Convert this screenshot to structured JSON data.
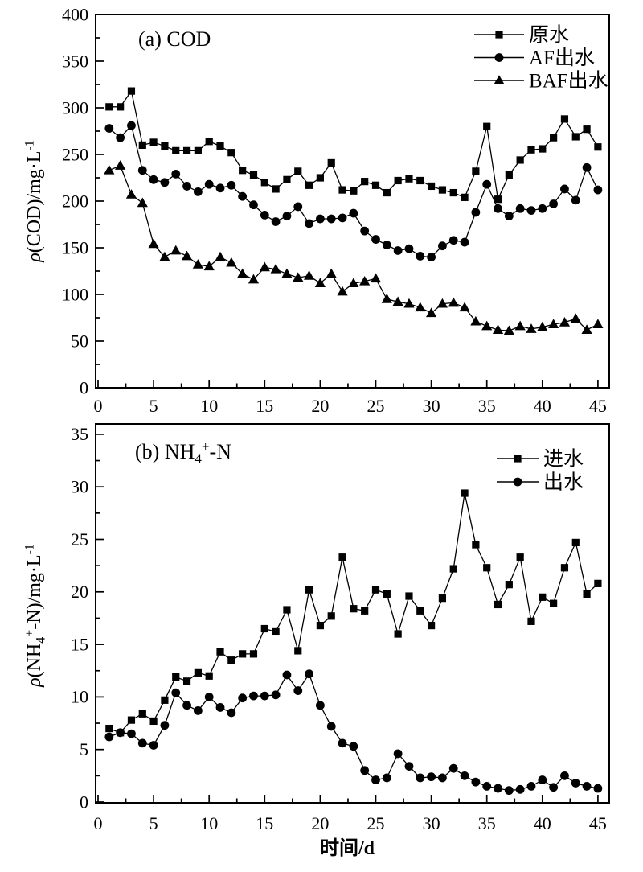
{
  "figure": {
    "background": "#ffffff",
    "ink_color": "#000000",
    "x_axis_title": "时间/d"
  },
  "chart_data": [
    {
      "panel": "a",
      "type": "line",
      "title_text": "(a) COD",
      "title_parts": [
        {
          "t": "(a)  COD"
        }
      ],
      "ylabel_text": "ρ(COD)/mg·L⁻¹",
      "ylabel_parts": [
        {
          "t": "ρ",
          "i": 1
        },
        {
          "t": "(COD)/mg·L"
        },
        {
          "t": "-1",
          "sup": 1
        }
      ],
      "xlabel": "",
      "xlim": [
        0,
        45
      ],
      "ylim": [
        0,
        400
      ],
      "xticks": [
        0,
        5,
        10,
        15,
        20,
        25,
        30,
        35,
        40,
        45
      ],
      "yticks": [
        0,
        50,
        100,
        150,
        200,
        250,
        300,
        350,
        400
      ],
      "x_minor_step": 2.5,
      "y_minor_step": 25,
      "legend_position": "top-right",
      "grid": false,
      "x": [
        1,
        2,
        3,
        4,
        5,
        6,
        7,
        8,
        9,
        10,
        11,
        12,
        13,
        14,
        15,
        16,
        17,
        18,
        19,
        20,
        21,
        22,
        23,
        24,
        25,
        26,
        27,
        28,
        29,
        30,
        31,
        32,
        33,
        34,
        35,
        36,
        37,
        38,
        39,
        40,
        41,
        42,
        43,
        44,
        45
      ],
      "series": [
        {
          "id": "raw-water",
          "label": "原水",
          "marker": "square",
          "color": "#000000",
          "values": [
            301,
            301,
            318,
            260,
            263,
            259,
            254,
            254,
            254,
            264,
            259,
            252,
            233,
            228,
            220,
            213,
            223,
            232,
            217,
            225,
            241,
            212,
            211,
            221,
            217,
            209,
            222,
            224,
            222,
            216,
            212,
            209,
            204,
            232,
            280,
            202,
            228,
            244,
            255,
            256,
            268,
            288,
            269,
            277,
            258
          ]
        },
        {
          "id": "af-effluent",
          "label": "AF出水",
          "marker": "circle",
          "color": "#000000",
          "values": [
            278,
            268,
            281,
            233,
            223,
            220,
            229,
            216,
            210,
            218,
            214,
            217,
            205,
            196,
            185,
            178,
            184,
            194,
            176,
            181,
            181,
            182,
            187,
            168,
            159,
            153,
            147,
            149,
            141,
            140,
            152,
            158,
            156,
            188,
            218,
            192,
            184,
            192,
            190,
            192,
            197,
            213,
            201,
            236,
            212
          ]
        },
        {
          "id": "baf-effluent",
          "label": "BAF出水",
          "marker": "triangle",
          "color": "#000000",
          "values": [
            233,
            238,
            207,
            198,
            154,
            140,
            147,
            141,
            132,
            130,
            140,
            134,
            122,
            116,
            129,
            127,
            122,
            118,
            120,
            112,
            122,
            103,
            112,
            114,
            117,
            95,
            92,
            90,
            86,
            80,
            90,
            91,
            86,
            71,
            66,
            62,
            61,
            66,
            63,
            65,
            68,
            70,
            74,
            62,
            68
          ]
        }
      ]
    },
    {
      "panel": "b",
      "type": "line",
      "title_text": "(b) NH4+-N",
      "title_parts": [
        {
          "t": "(b) NH"
        },
        {
          "t": "4",
          "sub": 1
        },
        {
          "t": "+",
          "sup": 1
        },
        {
          "t": "-N"
        }
      ],
      "ylabel_text": "ρ(NH4+-N)/mg·L⁻¹",
      "ylabel_parts": [
        {
          "t": "ρ",
          "i": 1
        },
        {
          "t": "(NH"
        },
        {
          "t": "4",
          "sub": 1
        },
        {
          "t": "+",
          "sup": 1
        },
        {
          "t": "-N)/mg·L"
        },
        {
          "t": "-1",
          "sup": 1
        }
      ],
      "xlabel": "时间/d",
      "xlim": [
        0,
        45
      ],
      "ylim": [
        0,
        36
      ],
      "xticks": [
        0,
        5,
        10,
        15,
        20,
        25,
        30,
        35,
        40,
        45
      ],
      "yticks": [
        0,
        5,
        10,
        15,
        20,
        25,
        30,
        35
      ],
      "x_minor_step": 2.5,
      "y_minor_step": 2.5,
      "legend_position": "top-right",
      "grid": false,
      "x": [
        1,
        2,
        3,
        4,
        5,
        6,
        7,
        8,
        9,
        10,
        11,
        12,
        13,
        14,
        15,
        16,
        17,
        18,
        19,
        20,
        21,
        22,
        23,
        24,
        25,
        26,
        27,
        28,
        29,
        30,
        31,
        32,
        33,
        34,
        35,
        36,
        37,
        38,
        39,
        40,
        41,
        42,
        43,
        44,
        45
      ],
      "series": [
        {
          "id": "influent",
          "label": "进水",
          "marker": "square",
          "color": "#000000",
          "values": [
            7.0,
            6.6,
            7.8,
            8.4,
            7.7,
            9.7,
            11.9,
            11.5,
            12.3,
            12.0,
            14.3,
            13.5,
            14.1,
            14.1,
            16.5,
            16.2,
            18.3,
            14.4,
            20.2,
            16.8,
            17.7,
            23.3,
            18.4,
            18.2,
            20.2,
            19.8,
            16.0,
            19.6,
            18.2,
            16.8,
            19.4,
            22.2,
            29.4,
            24.5,
            22.3,
            18.8,
            20.7,
            23.3,
            17.2,
            19.5,
            18.9,
            22.3,
            24.7,
            19.8,
            20.8
          ]
        },
        {
          "id": "effluent",
          "label": "出水",
          "marker": "circle",
          "color": "#000000",
          "values": [
            6.2,
            6.6,
            6.5,
            5.6,
            5.4,
            7.3,
            10.4,
            9.2,
            8.7,
            10.0,
            9.0,
            8.5,
            9.9,
            10.1,
            10.1,
            10.2,
            12.1,
            10.6,
            12.2,
            9.2,
            7.2,
            5.6,
            5.3,
            3.0,
            2.1,
            2.3,
            4.6,
            3.4,
            2.3,
            2.4,
            2.3,
            3.2,
            2.5,
            1.9,
            1.5,
            1.3,
            1.1,
            1.2,
            1.5,
            2.1,
            1.4,
            2.5,
            1.8,
            1.5,
            1.3
          ]
        }
      ]
    }
  ]
}
